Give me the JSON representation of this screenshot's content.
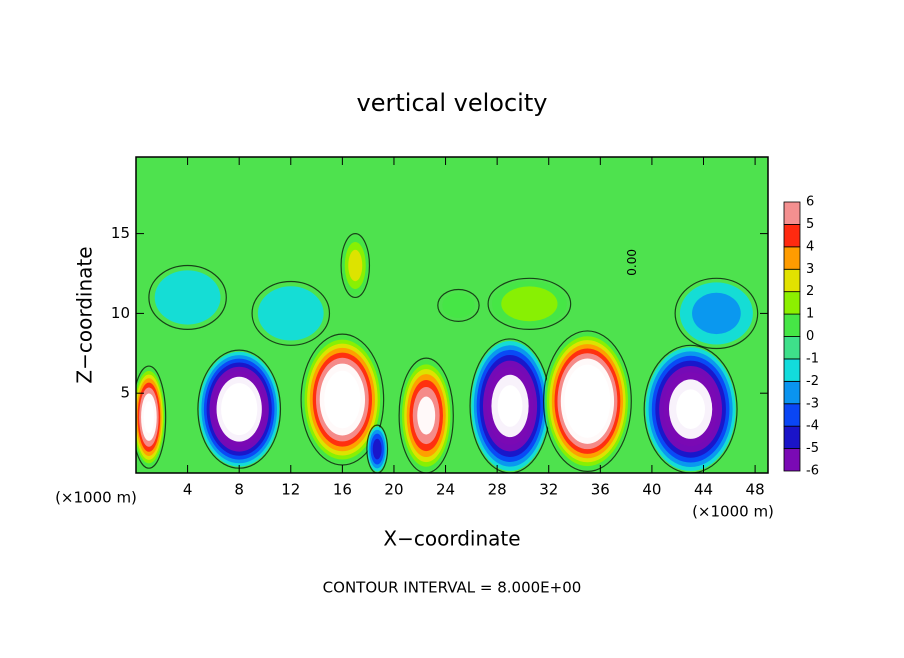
{
  "chart_data": {
    "type": "contour",
    "title": "vertical velocity",
    "xlabel": "X−coordinate",
    "ylabel": "Z−coordinate",
    "x_unit": "(×1000 m)",
    "footer": "CONTOUR INTERVAL = 8.000E+00",
    "annotation": {
      "text": "0.00",
      "x": 38.5,
      "z": 13.2
    },
    "xlim": [
      0,
      49
    ],
    "ylim": [
      0,
      19.8
    ],
    "xticks": [
      4,
      8,
      12,
      16,
      20,
      24,
      28,
      32,
      36,
      40,
      44,
      48
    ],
    "yticks": [
      5,
      10,
      15
    ],
    "background": "#4ee24e",
    "colorbar": {
      "levels": [
        -6,
        -5,
        -4,
        -3,
        -2,
        -1,
        0,
        1,
        2,
        3,
        4,
        5,
        6
      ],
      "colors": [
        "#7a0ab4",
        "#1a14c8",
        "#0a46f5",
        "#0a94f0",
        "#12dcdc",
        "#3ee08a",
        "#46e646",
        "#8cf000",
        "#e2e200",
        "#ff9c00",
        "#ff2a10",
        "#f49090"
      ],
      "over": "#ffffff"
    },
    "features": [
      {
        "x": 1.0,
        "z": 3.5,
        "rx": 1.3,
        "rz": 3.2,
        "value": 8
      },
      {
        "x": 8.0,
        "z": 4.0,
        "rx": 3.2,
        "rz": 3.7,
        "value": -9
      },
      {
        "x": 16.0,
        "z": 4.6,
        "rx": 3.2,
        "rz": 4.1,
        "value": 9
      },
      {
        "x": 18.7,
        "z": 1.5,
        "rx": 0.8,
        "rz": 1.5,
        "value": -4
      },
      {
        "x": 22.5,
        "z": 3.6,
        "rx": 2.1,
        "rz": 3.6,
        "value": 7
      },
      {
        "x": 29.0,
        "z": 4.2,
        "rx": 3.1,
        "rz": 4.2,
        "value": -8
      },
      {
        "x": 35.0,
        "z": 4.5,
        "rx": 3.4,
        "rz": 4.4,
        "value": 10
      },
      {
        "x": 43.0,
        "z": 4.0,
        "rx": 3.6,
        "rz": 4.0,
        "value": -8
      },
      {
        "x": 17.0,
        "z": 13.0,
        "rx": 1.1,
        "rz": 2.0,
        "value": 3
      },
      {
        "x": 30.5,
        "z": 10.6,
        "rx": 3.2,
        "rz": 1.6,
        "value": 2.5
      },
      {
        "x": 12.0,
        "z": 10.0,
        "rx": 3.0,
        "rz": 2.0,
        "value": -1.5
      },
      {
        "x": 4.0,
        "z": 11.0,
        "rx": 3.0,
        "rz": 2.0,
        "value": -1.5
      },
      {
        "x": 45.0,
        "z": 10.0,
        "rx": 3.2,
        "rz": 2.2,
        "value": -2
      },
      {
        "x": 25.0,
        "z": 10.5,
        "rx": 1.6,
        "rz": 1.0,
        "value": 1
      }
    ]
  }
}
